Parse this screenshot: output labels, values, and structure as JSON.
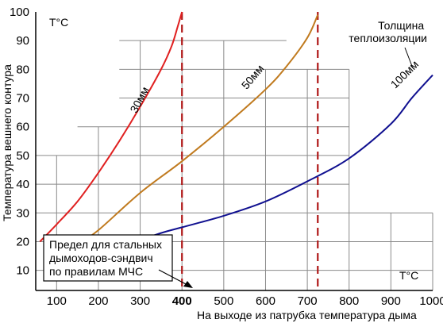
{
  "chart_data": {
    "type": "line",
    "y_unit_label": "T°C",
    "x_unit_label": "T°C",
    "ylabel": "Температура вешнего  контура",
    "xlabel": "На выходе из патрубка температура дыма",
    "xlim": [
      50,
      1000
    ],
    "ylim": [
      3,
      100
    ],
    "x_ticks": [
      100,
      200,
      300,
      400,
      500,
      600,
      700,
      800,
      900,
      1000
    ],
    "y_ticks": [
      10,
      20,
      30,
      40,
      50,
      60,
      70,
      80,
      90,
      100
    ],
    "highlight_x_tick": 400,
    "vertical_markers": [
      400,
      725
    ],
    "legend_title": "Толщина теплоизоляции",
    "annotation": "Предел для стальных дымоходов-сэндвич по правилам МЧС",
    "annotation_lines": [
      "Предел для стальных",
      "дымоходов-сэндвич",
      "по правилам МЧС"
    ],
    "series": [
      {
        "name": "30мм",
        "color": "#e02020",
        "x": [
          60,
          100,
          150,
          200,
          250,
          300,
          350,
          375,
          390,
          400
        ],
        "y": [
          20,
          26,
          34,
          44,
          55,
          67,
          80,
          88,
          95,
          100
        ]
      },
      {
        "name": "50мм",
        "color": "#c07a1e",
        "x": [
          150,
          200,
          300,
          400,
          500,
          600,
          650,
          700,
          725
        ],
        "y": [
          19,
          24,
          37,
          48,
          60,
          73,
          81,
          91,
          99
        ]
      },
      {
        "name": "100мм",
        "color": "#101090",
        "x": [
          270,
          350,
          400,
          500,
          600,
          700,
          800,
          900,
          950,
          1000
        ],
        "y": [
          19,
          23,
          25,
          29,
          34,
          41,
          49,
          61,
          70,
          78
        ]
      }
    ]
  }
}
